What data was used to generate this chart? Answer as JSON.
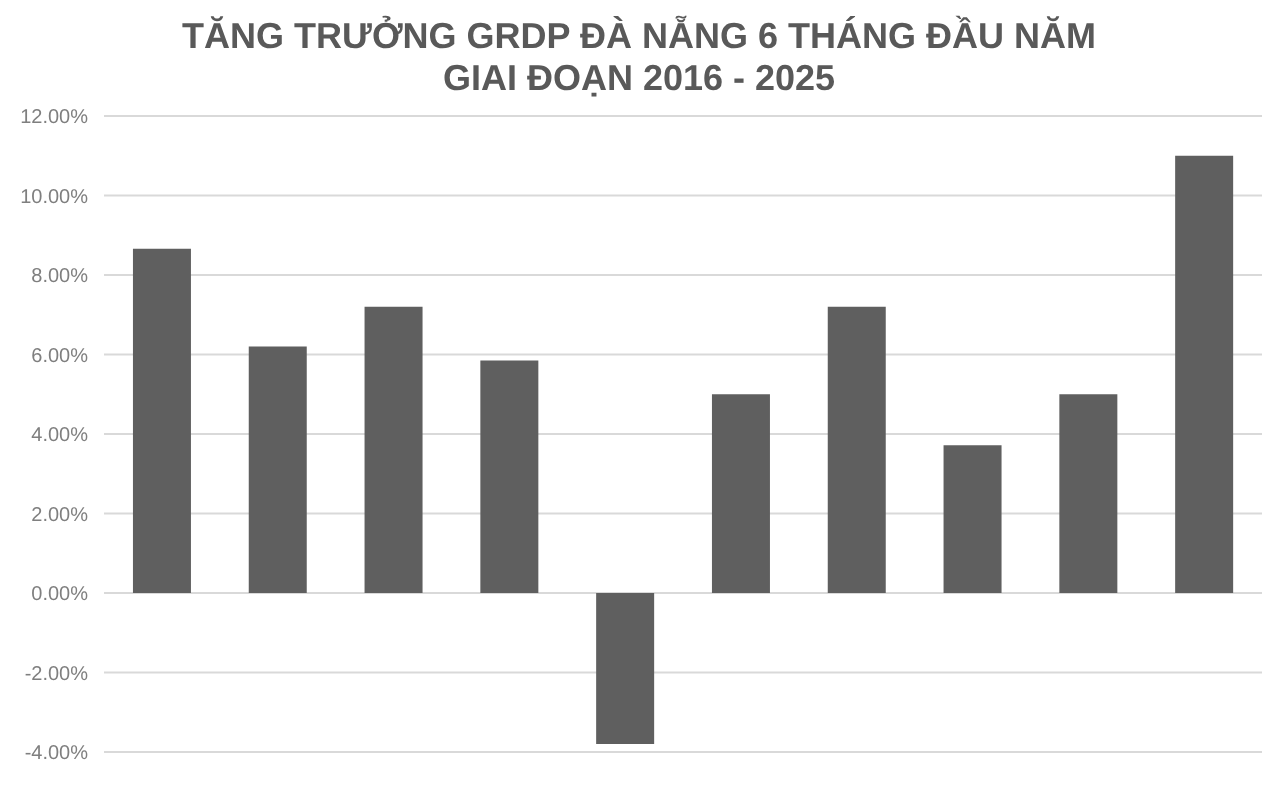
{
  "chart_data": {
    "type": "bar",
    "title": "TĂNG TRƯỞNG GRDP ĐÀ NẴNG 6 THÁNG ĐẦU NĂM\nGIAI ĐOẠN 2016 - 2025",
    "categories": [
      null,
      null,
      null,
      null,
      null,
      null,
      null,
      null,
      null,
      null
    ],
    "values": [
      8.66,
      6.2,
      7.2,
      5.85,
      -3.8,
      5.0,
      7.2,
      3.72,
      5.0,
      11.0
    ],
    "color": "#5f5f5f",
    "ylim": [
      -4,
      12
    ],
    "yticks": [
      {
        "value": -4,
        "label": "-4.00%"
      },
      {
        "value": -2,
        "label": "-2.00%"
      },
      {
        "value": 0,
        "label": "0.00%"
      },
      {
        "value": 2,
        "label": "2.00%"
      },
      {
        "value": 4,
        "label": "4.00%"
      },
      {
        "value": 6,
        "label": "6.00%"
      },
      {
        "value": 8,
        "label": "8.00%"
      },
      {
        "value": 10,
        "label": "10.00%"
      },
      {
        "value": 12,
        "label": "12.00%"
      }
    ],
    "grid": "y",
    "legend": false,
    "tick_labels": "y"
  }
}
